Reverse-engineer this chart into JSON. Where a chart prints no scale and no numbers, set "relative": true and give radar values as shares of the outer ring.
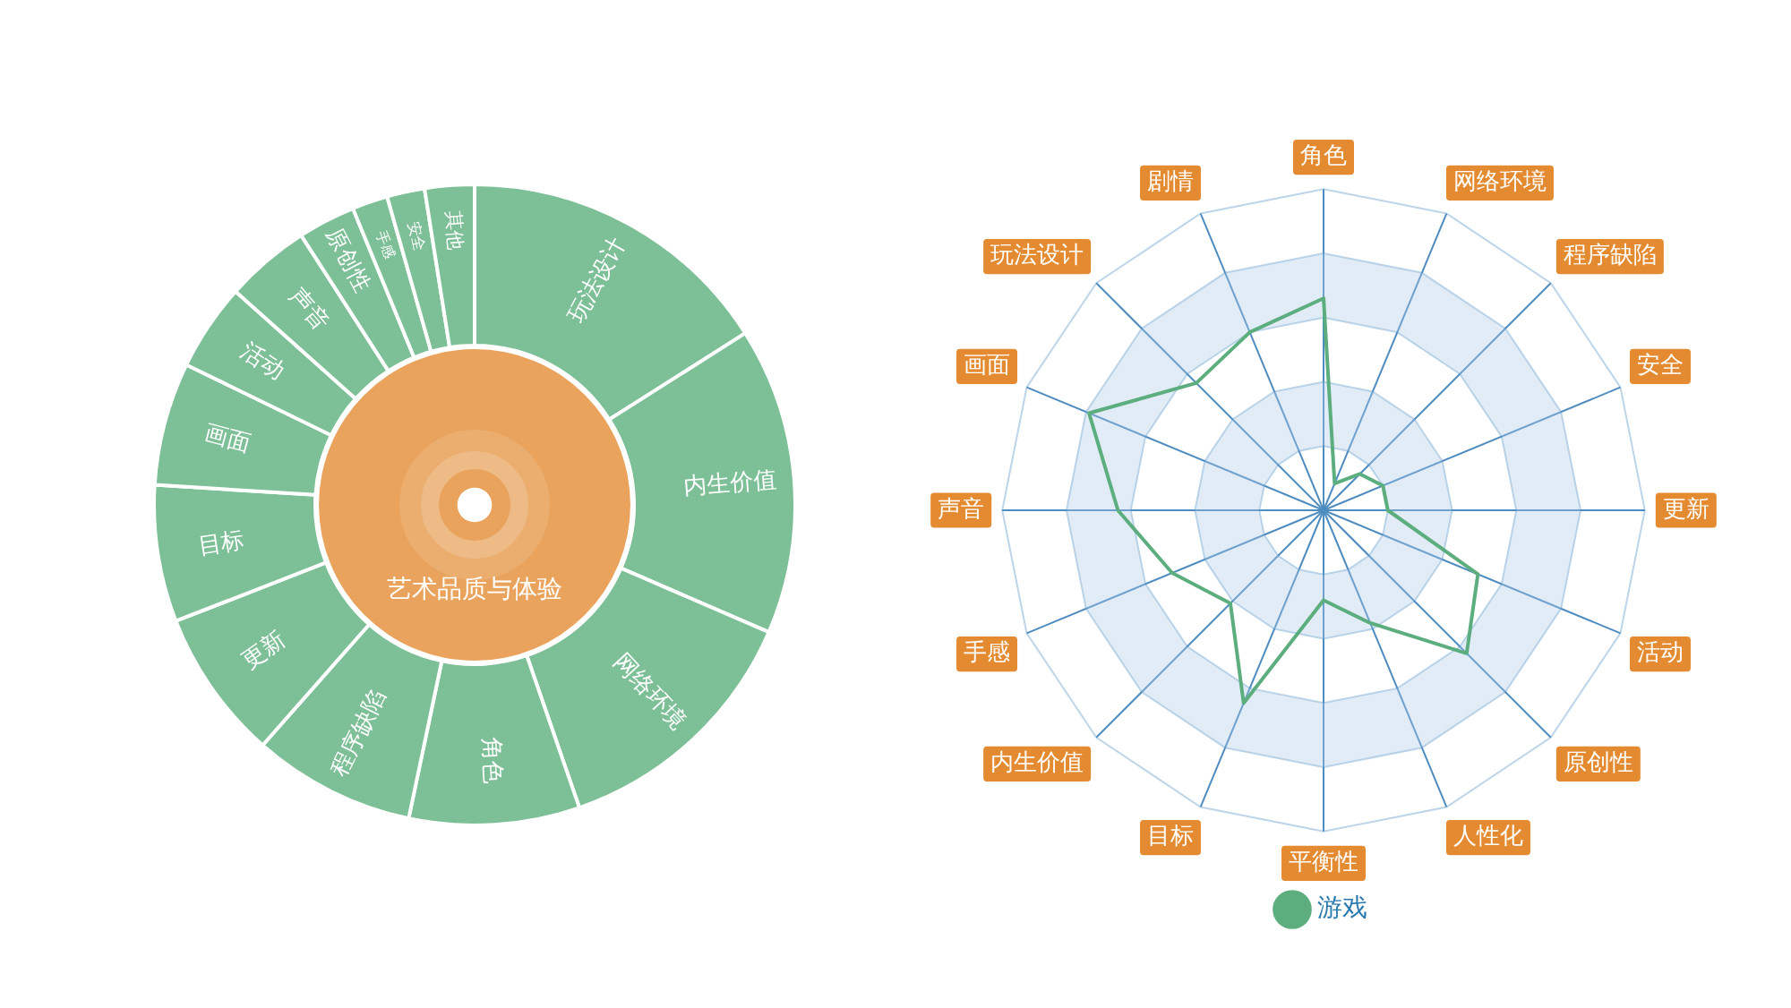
{
  "chart_data": [
    {
      "type": "pie",
      "categories": [
        "艺术品质与体验"
      ],
      "values": [
        100
      ],
      "colors": [
        "#e9a35c"
      ]
    },
    {
      "type": "donut",
      "categories": [
        "玩法设计",
        "内生价值",
        "网络环境",
        "角色",
        "程序缺陷",
        "更新",
        "目标",
        "画面",
        "活动",
        "声音",
        "原创性",
        "手感",
        "安全",
        "其他"
      ],
      "values": [
        16.0,
        15.5,
        13.2,
        8.6,
        8.2,
        7.6,
        6.9,
        6.2,
        4.4,
        4.3,
        2.9,
        1.8,
        1.9,
        2.5
      ],
      "colors": [
        "#7dbf96",
        "#7dbf96",
        "#7dbf96",
        "#7dbf96",
        "#7dbf96",
        "#7dbf96",
        "#7dbf96",
        "#7dbf96",
        "#7dbf96",
        "#7dbf96",
        "#7dbf96",
        "#7dbf96",
        "#7dbf96",
        "#7dbf96"
      ]
    },
    {
      "type": "radar",
      "relative": true,
      "legend": "bottom",
      "categories": [
        "角色",
        "网络环境",
        "程序缺陷",
        "安全",
        "更新",
        "活动",
        "原创性",
        "人性化",
        "平衡性",
        "目标",
        "内生价值",
        "手感",
        "声音",
        "画面",
        "玩法设计",
        "剧情"
      ],
      "series": [
        {
          "name": "游戏",
          "color": "#5dae7e",
          "values": [
            0.66,
            0.09,
            0.16,
            0.2,
            0.2,
            0.52,
            0.63,
            0.38,
            0.28,
            0.65,
            0.41,
            0.51,
            0.64,
            0.79,
            0.56,
            0.6
          ]
        }
      ]
    }
  ]
}
